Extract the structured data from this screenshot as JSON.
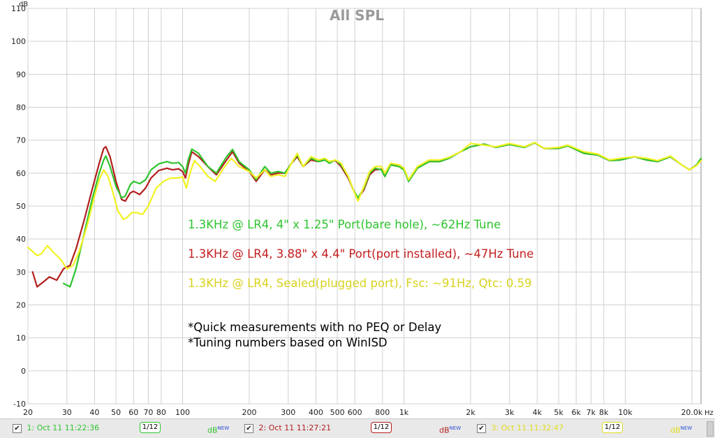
{
  "chart_data": {
    "type": "line",
    "title": "All SPL",
    "ylabel": "dB",
    "xlabel": "Hz",
    "x_scale": "log",
    "xlim": [
      20,
      22000
    ],
    "ylim": [
      -10,
      110
    ],
    "y_ticks": [
      -10,
      0,
      10,
      20,
      30,
      40,
      50,
      60,
      70,
      80,
      90,
      100,
      110
    ],
    "x_ticks": [
      {
        "v": 20,
        "label": "20"
      },
      {
        "v": 30,
        "label": "30"
      },
      {
        "v": 40,
        "label": "40"
      },
      {
        "v": 50,
        "label": "50"
      },
      {
        "v": 60,
        "label": "60"
      },
      {
        "v": 70,
        "label": "70"
      },
      {
        "v": 80,
        "label": "80"
      },
      {
        "v": 100,
        "label": "100"
      },
      {
        "v": 200,
        "label": "200"
      },
      {
        "v": 300,
        "label": "300"
      },
      {
        "v": 400,
        "label": "400"
      },
      {
        "v": 500,
        "label": "500"
      },
      {
        "v": 600,
        "label": "600"
      },
      {
        "v": 800,
        "label": "800"
      },
      {
        "v": 1000,
        "label": "1k"
      },
      {
        "v": 2000,
        "label": "2k"
      },
      {
        "v": 3000,
        "label": "3k"
      },
      {
        "v": 4000,
        "label": "4k"
      },
      {
        "v": 5000,
        "label": "5k"
      },
      {
        "v": 6000,
        "label": "6k"
      },
      {
        "v": 7000,
        "label": "7k"
      },
      {
        "v": 8000,
        "label": "8k"
      },
      {
        "v": 10000,
        "label": "10k"
      },
      {
        "v": 20000,
        "label": "20.0k"
      }
    ],
    "grid": true,
    "series": [
      {
        "name": "1: Oct 11 11:22:36",
        "color": "#2ec42e",
        "points": [
          [
            29,
            26.5
          ],
          [
            31,
            25.5
          ],
          [
            33,
            31
          ],
          [
            36,
            42
          ],
          [
            39,
            52
          ],
          [
            42,
            60
          ],
          [
            44,
            64
          ],
          [
            45,
            65.2
          ],
          [
            47,
            62
          ],
          [
            50,
            56
          ],
          [
            53,
            52.5
          ],
          [
            55,
            53
          ],
          [
            58,
            56.5
          ],
          [
            60,
            57.5
          ],
          [
            64,
            56.8
          ],
          [
            68,
            58
          ],
          [
            72,
            61
          ],
          [
            78,
            62.8
          ],
          [
            85,
            63.5
          ],
          [
            90,
            63
          ],
          [
            96,
            63.2
          ],
          [
            100,
            62
          ],
          [
            103,
            60
          ],
          [
            106,
            64
          ],
          [
            110,
            67.3
          ],
          [
            118,
            66
          ],
          [
            130,
            62
          ],
          [
            142,
            60
          ],
          [
            158,
            65
          ],
          [
            168,
            67.2
          ],
          [
            180,
            63.5
          ],
          [
            200,
            61
          ],
          [
            215,
            58
          ],
          [
            235,
            62
          ],
          [
            250,
            60
          ],
          [
            270,
            60.5
          ],
          [
            290,
            60
          ],
          [
            310,
            63
          ],
          [
            330,
            65.5
          ],
          [
            350,
            62
          ],
          [
            380,
            64.5
          ],
          [
            410,
            63.5
          ],
          [
            440,
            64
          ],
          [
            460,
            63
          ],
          [
            490,
            64
          ],
          [
            520,
            62.5
          ],
          [
            560,
            59
          ],
          [
            590,
            55
          ],
          [
            620,
            52.5
          ],
          [
            660,
            55.5
          ],
          [
            700,
            60
          ],
          [
            740,
            61.5
          ],
          [
            790,
            61
          ],
          [
            820,
            59
          ],
          [
            870,
            62.5
          ],
          [
            950,
            62
          ],
          [
            1000,
            61
          ],
          [
            1050,
            57.5
          ],
          [
            1150,
            61.5
          ],
          [
            1300,
            63.5
          ],
          [
            1450,
            63.5
          ],
          [
            1600,
            64.5
          ],
          [
            1800,
            66.5
          ],
          [
            2000,
            68
          ],
          [
            2300,
            68.8
          ],
          [
            2600,
            67.8
          ],
          [
            3000,
            68.7
          ],
          [
            3500,
            67.8
          ],
          [
            3900,
            69.2
          ],
          [
            4300,
            67.5
          ],
          [
            5000,
            67.5
          ],
          [
            5500,
            68.3
          ],
          [
            6500,
            66
          ],
          [
            7500,
            65.5
          ],
          [
            8500,
            63.8
          ],
          [
            9500,
            64
          ],
          [
            11000,
            65
          ],
          [
            12500,
            64
          ],
          [
            14000,
            63.5
          ],
          [
            16000,
            65
          ],
          [
            18000,
            62.5
          ],
          [
            19500,
            61
          ],
          [
            21000,
            62.5
          ],
          [
            22000,
            64.5
          ]
        ]
      },
      {
        "name": "2: Oct 11 11:27:21",
        "color": "#b21e1e",
        "points": [
          [
            21,
            30
          ],
          [
            22,
            25.5
          ],
          [
            23.5,
            27
          ],
          [
            25,
            28.5
          ],
          [
            27,
            27.5
          ],
          [
            29,
            31
          ],
          [
            31,
            32
          ],
          [
            33,
            37
          ],
          [
            36,
            46
          ],
          [
            39,
            55
          ],
          [
            42,
            63
          ],
          [
            44,
            67.5
          ],
          [
            45,
            68
          ],
          [
            47,
            65
          ],
          [
            50,
            57.5
          ],
          [
            53,
            52
          ],
          [
            55,
            51.5
          ],
          [
            58,
            54
          ],
          [
            60,
            54.5
          ],
          [
            64,
            53.5
          ],
          [
            68,
            55.5
          ],
          [
            72,
            58.5
          ],
          [
            78,
            60.8
          ],
          [
            85,
            61.5
          ],
          [
            90,
            61
          ],
          [
            96,
            61.3
          ],
          [
            100,
            60.5
          ],
          [
            103,
            58.5
          ],
          [
            106,
            62.5
          ],
          [
            110,
            66.5
          ],
          [
            118,
            65
          ],
          [
            130,
            62
          ],
          [
            142,
            59.5
          ],
          [
            158,
            64
          ],
          [
            168,
            66.5
          ],
          [
            180,
            63
          ],
          [
            200,
            60.5
          ],
          [
            215,
            57.5
          ],
          [
            235,
            61
          ],
          [
            250,
            59.5
          ],
          [
            270,
            60
          ],
          [
            290,
            60
          ],
          [
            310,
            63
          ],
          [
            330,
            65
          ],
          [
            350,
            62
          ],
          [
            380,
            64
          ],
          [
            410,
            63.5
          ],
          [
            440,
            64
          ],
          [
            460,
            63.5
          ],
          [
            490,
            63.8
          ],
          [
            520,
            62
          ],
          [
            560,
            58.5
          ],
          [
            590,
            55
          ],
          [
            620,
            52.3
          ],
          [
            660,
            55
          ],
          [
            700,
            59.5
          ],
          [
            740,
            61
          ],
          [
            790,
            61.2
          ],
          [
            820,
            59
          ],
          [
            870,
            62.5
          ],
          [
            950,
            62.5
          ],
          [
            1000,
            61.5
          ],
          [
            1050,
            57.5
          ],
          [
            1150,
            61.5
          ],
          [
            1300,
            63.5
          ],
          [
            1450,
            63.5
          ],
          [
            1600,
            64.5
          ],
          [
            1800,
            66.5
          ],
          [
            2000,
            68
          ],
          [
            2300,
            68.8
          ],
          [
            2600,
            67.8
          ],
          [
            3000,
            68.7
          ],
          [
            3500,
            67.8
          ],
          [
            3900,
            69.2
          ],
          [
            4300,
            67.5
          ],
          [
            5000,
            67.5
          ],
          [
            5500,
            68.3
          ],
          [
            6500,
            66
          ],
          [
            7500,
            65.5
          ],
          [
            8500,
            63.8
          ],
          [
            9500,
            64
          ],
          [
            11000,
            65
          ],
          [
            12500,
            64
          ],
          [
            14000,
            63.5
          ],
          [
            16000,
            65
          ],
          [
            18000,
            62.5
          ],
          [
            19500,
            61
          ],
          [
            21000,
            62.5
          ],
          [
            22000,
            64
          ]
        ]
      },
      {
        "name": "3: Oct 11 11:32:47",
        "color": "#f2f224",
        "points": [
          [
            20,
            37.5
          ],
          [
            22,
            35
          ],
          [
            23,
            35.5
          ],
          [
            24.5,
            38
          ],
          [
            26,
            36
          ],
          [
            28,
            34
          ],
          [
            30,
            31
          ],
          [
            32,
            32
          ],
          [
            34,
            36
          ],
          [
            37,
            44
          ],
          [
            40,
            53
          ],
          [
            42,
            58
          ],
          [
            44,
            61
          ],
          [
            46,
            59
          ],
          [
            48,
            55
          ],
          [
            51,
            48.5
          ],
          [
            54,
            46
          ],
          [
            56,
            46.5
          ],
          [
            59,
            48
          ],
          [
            62,
            48
          ],
          [
            66,
            47.5
          ],
          [
            70,
            50
          ],
          [
            76,
            55.5
          ],
          [
            82,
            57.5
          ],
          [
            88,
            58.5
          ],
          [
            94,
            58.5
          ],
          [
            100,
            58.8
          ],
          [
            104,
            55.5
          ],
          [
            108,
            60
          ],
          [
            113,
            63.8
          ],
          [
            120,
            62
          ],
          [
            130,
            59
          ],
          [
            140,
            57.5
          ],
          [
            155,
            62
          ],
          [
            166,
            64.5
          ],
          [
            180,
            62
          ],
          [
            200,
            60.5
          ],
          [
            215,
            58.5
          ],
          [
            235,
            61
          ],
          [
            250,
            59
          ],
          [
            270,
            59.5
          ],
          [
            290,
            59
          ],
          [
            310,
            63
          ],
          [
            330,
            66
          ],
          [
            350,
            62
          ],
          [
            380,
            65
          ],
          [
            410,
            64
          ],
          [
            440,
            64.5
          ],
          [
            460,
            63.5
          ],
          [
            490,
            64
          ],
          [
            520,
            63
          ],
          [
            560,
            59
          ],
          [
            590,
            55
          ],
          [
            620,
            51.5
          ],
          [
            660,
            56
          ],
          [
            700,
            60.5
          ],
          [
            740,
            62
          ],
          [
            790,
            62
          ],
          [
            820,
            60
          ],
          [
            870,
            63
          ],
          [
            950,
            62.5
          ],
          [
            1000,
            61.5
          ],
          [
            1050,
            58
          ],
          [
            1150,
            62
          ],
          [
            1300,
            64
          ],
          [
            1450,
            64
          ],
          [
            1600,
            64.8
          ],
          [
            1800,
            66.5
          ],
          [
            2000,
            69
          ],
          [
            2300,
            68.5
          ],
          [
            2600,
            68
          ],
          [
            3000,
            69
          ],
          [
            3500,
            68
          ],
          [
            3900,
            69.3
          ],
          [
            4300,
            67.5
          ],
          [
            5000,
            67.8
          ],
          [
            5500,
            68.5
          ],
          [
            6500,
            66.5
          ],
          [
            7500,
            65.8
          ],
          [
            8500,
            64
          ],
          [
            9500,
            64.5
          ],
          [
            11000,
            65
          ],
          [
            12500,
            64.5
          ],
          [
            14000,
            63.8
          ],
          [
            16000,
            65.2
          ],
          [
            18000,
            62.5
          ],
          [
            19500,
            61
          ],
          [
            21000,
            62.3
          ],
          [
            22000,
            63.8
          ]
        ]
      }
    ],
    "annotations": [
      {
        "text": "1.3KHz @ LR4, 4\" x 1.25\" Port(bare hole), ~62Hz Tune",
        "color": "#2ec42e"
      },
      {
        "text": "1.3KHz @ LR4, 3.88\" x 4.4\" Port(port installed), ~47Hz Tune",
        "color": "#c41e1e"
      },
      {
        "text": "1.3KHz @ LR4, Sealed(plugged port), Fsc: ~91Hz, Qtc: 0.59",
        "color": "#d8d21e"
      },
      {
        "text": "*Quick measurements with no PEQ or Delay",
        "color": "#000000"
      },
      {
        "text": "*Tuning numbers based on WinISD",
        "color": "#000000"
      }
    ]
  },
  "legend": {
    "items": [
      {
        "label": "1: Oct 11 11:22:36",
        "color": "#2ec42e",
        "smoothing": "1/12",
        "db": "dB",
        "db_sup": "NEW"
      },
      {
        "label": "2: Oct 11 11:27:21",
        "color": "#b21e1e",
        "smoothing": "1/12",
        "db": "dB",
        "db_sup": "NEW"
      },
      {
        "label": "3: Oct 11 11:32:47",
        "color": "#e0dc1a",
        "smoothing": "1/12",
        "db": "dB",
        "db_sup": "NEW"
      }
    ],
    "checkmark": "✔"
  }
}
